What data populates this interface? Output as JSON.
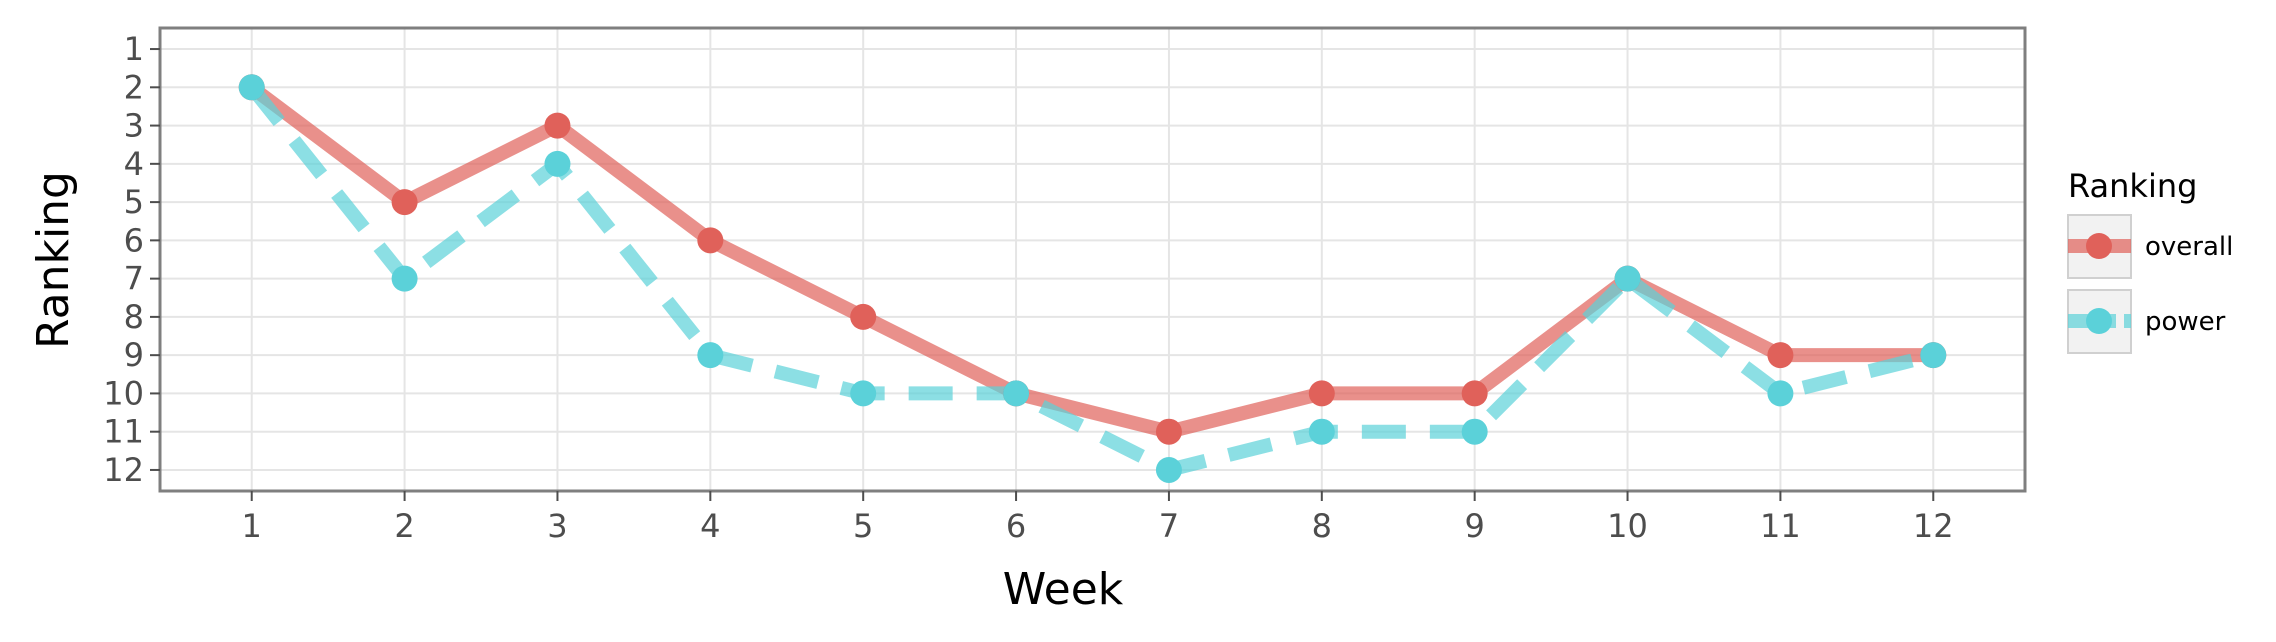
{
  "chart_data": {
    "type": "line",
    "xlabel": "Week",
    "ylabel": "Ranking",
    "x": [
      1,
      2,
      3,
      4,
      5,
      6,
      7,
      8,
      9,
      10,
      11,
      12
    ],
    "xlim": [
      0.4,
      12.6
    ],
    "ylim": [
      12.55,
      0.45
    ],
    "y_reversed": true,
    "y_ticks": [
      1,
      2,
      3,
      4,
      5,
      6,
      7,
      8,
      9,
      10,
      11,
      12
    ],
    "grid": true,
    "legend": {
      "title": "Ranking",
      "position": "right"
    },
    "series": [
      {
        "name": "overall",
        "color": "#e0615a",
        "line_style": "solid",
        "values": [
          2,
          5,
          3,
          6,
          8,
          10,
          11,
          10,
          10,
          7,
          9,
          9
        ]
      },
      {
        "name": "power",
        "color": "#5bd1d9",
        "line_style": "dashed",
        "values": [
          2,
          7,
          4,
          9,
          10,
          10,
          12,
          11,
          11,
          7,
          10,
          9
        ]
      }
    ]
  }
}
